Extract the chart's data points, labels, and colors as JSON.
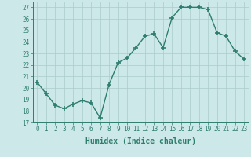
{
  "x": [
    0,
    1,
    2,
    3,
    4,
    5,
    6,
    7,
    8,
    9,
    10,
    11,
    12,
    13,
    14,
    15,
    16,
    17,
    18,
    19,
    20,
    21,
    22,
    23
  ],
  "y": [
    20.5,
    19.5,
    18.5,
    18.2,
    18.6,
    18.9,
    18.7,
    17.4,
    20.3,
    22.2,
    22.6,
    23.5,
    24.5,
    24.7,
    23.5,
    26.1,
    27.0,
    27.0,
    27.0,
    26.8,
    24.8,
    24.5,
    23.2,
    22.5
  ],
  "line_color": "#2e7d6e",
  "marker": "+",
  "marker_size": 4,
  "bg_color": "#cce8e8",
  "grid_color": "#aacccc",
  "xlabel": "Humidex (Indice chaleur)",
  "xlim": [
    -0.5,
    23.5
  ],
  "ylim": [
    17,
    27.5
  ],
  "yticks": [
    17,
    18,
    19,
    20,
    21,
    22,
    23,
    24,
    25,
    26,
    27
  ],
  "xticks": [
    0,
    1,
    2,
    3,
    4,
    5,
    6,
    7,
    8,
    9,
    10,
    11,
    12,
    13,
    14,
    15,
    16,
    17,
    18,
    19,
    20,
    21,
    22,
    23
  ],
  "xtick_labels": [
    "0",
    "1",
    "2",
    "3",
    "4",
    "5",
    "6",
    "7",
    "8",
    "9",
    "10",
    "11",
    "12",
    "13",
    "14",
    "15",
    "16",
    "17",
    "18",
    "19",
    "20",
    "21",
    "22",
    "23"
  ],
  "tick_color": "#2e7d6e",
  "label_fontsize": 7,
  "tick_fontsize": 5.5,
  "linewidth": 1.0
}
